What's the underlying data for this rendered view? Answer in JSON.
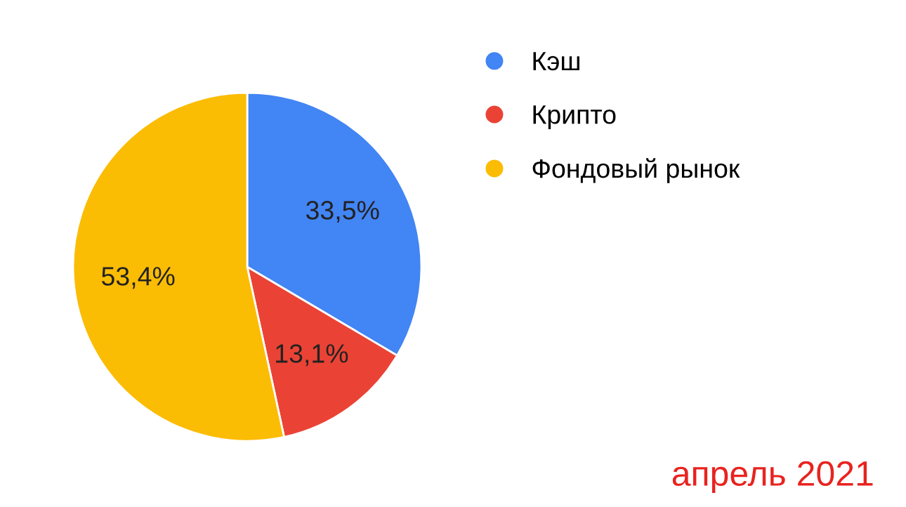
{
  "chart_data": {
    "type": "pie",
    "categories": [
      "Кэш",
      "Крипто",
      "Фондовый рынок"
    ],
    "values": [
      33.5,
      13.1,
      53.4
    ],
    "value_labels": [
      "33,5%",
      "13,1%",
      "53,4%"
    ],
    "colors": [
      "#4285f4",
      "#ea4335",
      "#fbbc04"
    ],
    "legend": "right",
    "annotations": [
      "апрель 2021"
    ]
  }
}
